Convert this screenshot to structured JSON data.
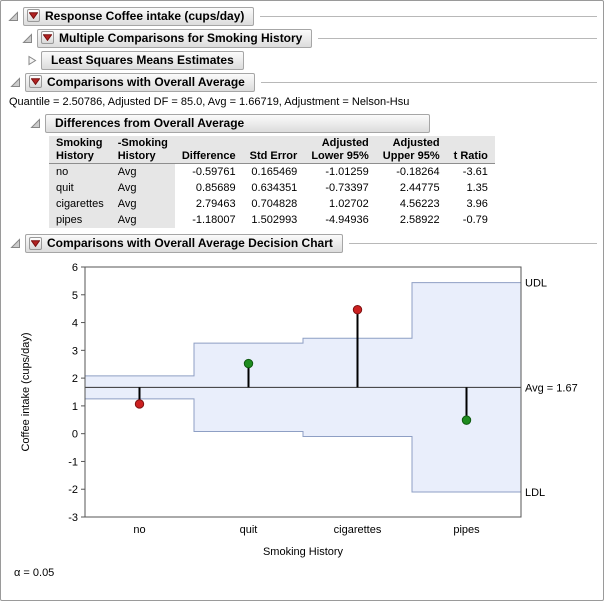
{
  "colors": {
    "accent_red": "#b22222",
    "band_fill": "#e9eefb",
    "band_stroke": "#8e9fc4",
    "avg_line": "#333333",
    "point_red": "#cc2020",
    "point_green": "#1f8c1f"
  },
  "outline": {
    "response": "Response Coffee intake (cups/day)",
    "multiple_comparisons": "Multiple Comparisons for Smoking History",
    "lsm": "Least Squares Means Estimates",
    "comparisons_avg": "Comparisons with Overall Average",
    "quantile_line": "Quantile = 2.50786, Adjusted DF = 85.0, Avg = 1.66719, Adjustment = Nelson-Hsu",
    "differences": "Differences from Overall Average",
    "decision_chart": "Comparisons with Overall Average Decision Chart"
  },
  "table": {
    "headers": [
      {
        "l1": "Smoking",
        "l2": "History"
      },
      {
        "l1": "-Smoking",
        "l2": "History"
      },
      {
        "l1": "",
        "l2": "Difference"
      },
      {
        "l1": "",
        "l2": "Std Error"
      },
      {
        "l1": "Adjusted",
        "l2": "Lower 95%"
      },
      {
        "l1": "Adjusted",
        "l2": "Upper 95%"
      },
      {
        "l1": "",
        "l2": "t Ratio"
      }
    ],
    "rows": [
      [
        "no",
        "Avg",
        "-0.59761",
        "0.165469",
        "-1.01259",
        "-0.18264",
        "-3.61"
      ],
      [
        "quit",
        "Avg",
        "0.85689",
        "0.634351",
        "-0.73397",
        "2.44775",
        "1.35"
      ],
      [
        "cigarettes",
        "Avg",
        "2.79463",
        "0.704828",
        "1.02702",
        "4.56223",
        "3.96"
      ],
      [
        "pipes",
        "Avg",
        "-1.18007",
        "1.502993",
        "-4.94936",
        "2.58922",
        "-0.79"
      ]
    ]
  },
  "chart_data": {
    "type": "decision_chart",
    "title": "Comparisons with Overall Average Decision Chart",
    "xlabel": "Smoking History",
    "ylabel": "Coffee intake (cups/day)",
    "ylim": [
      -3,
      6
    ],
    "yticks": [
      -3,
      -2,
      -1,
      0,
      1,
      2,
      3,
      4,
      5,
      6
    ],
    "categories": [
      "no",
      "quit",
      "cigarettes",
      "pipes"
    ],
    "avg": 1.66719,
    "avg_label": "Avg = 1.67",
    "udl_label": "UDL",
    "ldl_label": "LDL",
    "group_means": [
      1.06958,
      2.52408,
      4.46182,
      0.48712
    ],
    "udl": [
      2.08216,
      3.25806,
      3.43481,
      5.43647
    ],
    "ldl": [
      1.25222,
      0.07632,
      -0.10043,
      -2.10209
    ],
    "point_colors": [
      "#cc2020",
      "#1f8c1f",
      "#cc2020",
      "#1f8c1f"
    ],
    "point_strokes": [
      "#7e1212",
      "#0f5a0f",
      "#7e1212",
      "#0f5a0f"
    ],
    "significant": [
      true,
      false,
      true,
      false
    ]
  },
  "footer": {
    "alpha": "α = 0.05"
  }
}
